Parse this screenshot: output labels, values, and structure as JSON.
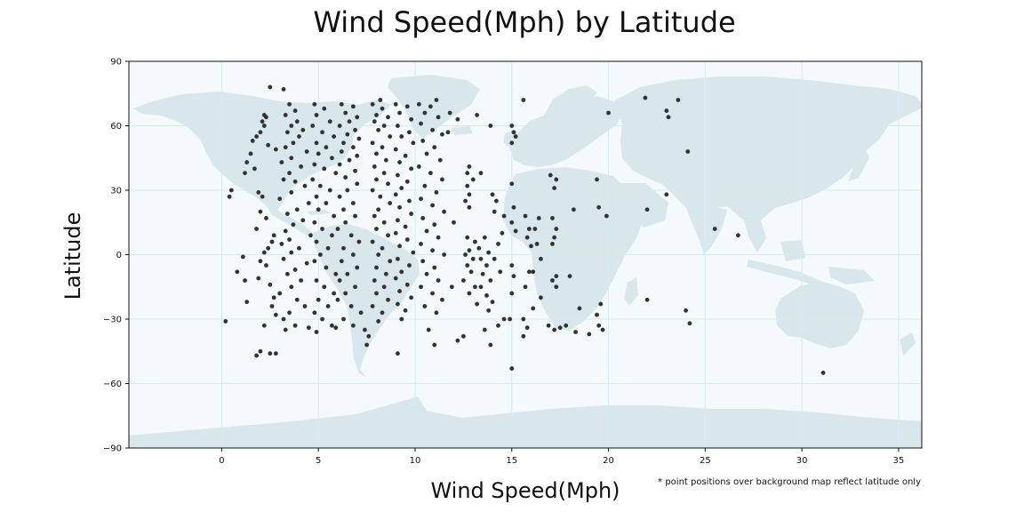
{
  "chart_data": {
    "type": "scatter",
    "title": "Wind Speed(Mph) by Latitude",
    "xlabel": "Wind Speed(Mph)",
    "ylabel": "Latitude",
    "xlim": [
      -4.8,
      36.2
    ],
    "ylim": [
      -90,
      90
    ],
    "x_ticks": [
      0,
      5,
      10,
      15,
      20,
      25,
      30,
      35
    ],
    "y_ticks": [
      90,
      60,
      30,
      0,
      -30,
      -60,
      -90
    ],
    "grid": true,
    "background": "world map",
    "footnote": "* point positions over background map reflect latitude only",
    "colors": {
      "points": "#333333",
      "land": "#d9e7ec",
      "ocean": "#f4f9fc",
      "grid": "#d6eaf5"
    },
    "points": [
      [
        2.5,
        78
      ],
      [
        3.2,
        77
      ],
      [
        2.2,
        65
      ],
      [
        2.3,
        64
      ],
      [
        2.1,
        62
      ],
      [
        2.2,
        60
      ],
      [
        2.0,
        57
      ],
      [
        1.8,
        55
      ],
      [
        1.6,
        53
      ],
      [
        2.4,
        51
      ],
      [
        2.8,
        49
      ],
      [
        1.5,
        47
      ],
      [
        1.3,
        43
      ],
      [
        1.7,
        40
      ],
      [
        1.2,
        38
      ],
      [
        0.5,
        30
      ],
      [
        0.4,
        27
      ],
      [
        1.9,
        29
      ],
      [
        2.1,
        27
      ],
      [
        2.0,
        20
      ],
      [
        2.3,
        17
      ],
      [
        1.8,
        12
      ],
      [
        2.7,
        9
      ],
      [
        2.6,
        6
      ],
      [
        2.4,
        3
      ],
      [
        2.2,
        1
      ],
      [
        1.1,
        -1
      ],
      [
        2.0,
        -3
      ],
      [
        2.3,
        -5
      ],
      [
        0.8,
        -8
      ],
      [
        1.2,
        -12
      ],
      [
        1.9,
        -11
      ],
      [
        2.5,
        -14
      ],
      [
        1.3,
        -22
      ],
      [
        2.7,
        -20
      ],
      [
        2.6,
        -24
      ],
      [
        2.8,
        -28
      ],
      [
        2.2,
        -33
      ],
      [
        0.2,
        -31
      ],
      [
        1.8,
        -47
      ],
      [
        2.0,
        -45
      ],
      [
        2.5,
        -46
      ],
      [
        2.8,
        -46
      ],
      [
        3.5,
        70
      ],
      [
        3.8,
        67
      ],
      [
        3.3,
        65
      ],
      [
        3.9,
        62
      ],
      [
        3.6,
        60
      ],
      [
        4.2,
        58
      ],
      [
        3.4,
        57
      ],
      [
        4.0,
        55
      ],
      [
        3.7,
        52
      ],
      [
        3.3,
        50
      ],
      [
        4.4,
        48
      ],
      [
        3.6,
        45
      ],
      [
        3.1,
        43
      ],
      [
        4.1,
        41
      ],
      [
        3.5,
        38
      ],
      [
        3.2,
        35
      ],
      [
        3.8,
        34
      ],
      [
        4.3,
        32
      ],
      [
        3.6,
        29
      ],
      [
        3.0,
        26
      ],
      [
        4.5,
        24
      ],
      [
        3.9,
        21
      ],
      [
        3.4,
        19
      ],
      [
        4.2,
        16
      ],
      [
        3.7,
        14
      ],
      [
        3.3,
        11
      ],
      [
        4.6,
        9
      ],
      [
        3.5,
        7
      ],
      [
        3.1,
        5
      ],
      [
        4.0,
        3
      ],
      [
        3.6,
        1
      ],
      [
        3.2,
        -2
      ],
      [
        4.4,
        -4
      ],
      [
        3.8,
        -7
      ],
      [
        3.4,
        -9
      ],
      [
        4.1,
        -12
      ],
      [
        3.6,
        -15
      ],
      [
        3.0,
        -18
      ],
      [
        3.9,
        -21
      ],
      [
        4.3,
        -24
      ],
      [
        3.5,
        -27
      ],
      [
        3.2,
        -30
      ],
      [
        3.8,
        -33
      ],
      [
        4.5,
        -34
      ],
      [
        3.3,
        -35
      ],
      [
        4.8,
        70
      ],
      [
        5.3,
        68
      ],
      [
        4.9,
        65
      ],
      [
        5.6,
        62
      ],
      [
        4.7,
        60
      ],
      [
        5.2,
        57
      ],
      [
        5.8,
        55
      ],
      [
        4.9,
        52
      ],
      [
        5.4,
        50
      ],
      [
        5.0,
        47
      ],
      [
        5.7,
        45
      ],
      [
        4.8,
        42
      ],
      [
        5.3,
        40
      ],
      [
        5.9,
        38
      ],
      [
        4.7,
        35
      ],
      [
        5.1,
        32
      ],
      [
        5.6,
        30
      ],
      [
        4.9,
        27
      ],
      [
        5.4,
        24
      ],
      [
        5.0,
        21
      ],
      [
        5.8,
        18
      ],
      [
        4.8,
        15
      ],
      [
        5.2,
        12
      ],
      [
        5.7,
        9
      ],
      [
        4.9,
        6
      ],
      [
        5.5,
        3
      ],
      [
        5.1,
        0
      ],
      [
        4.8,
        -3
      ],
      [
        5.4,
        -6
      ],
      [
        5.9,
        -9
      ],
      [
        4.9,
        -12
      ],
      [
        5.3,
        -15
      ],
      [
        5.8,
        -18
      ],
      [
        5.0,
        -21
      ],
      [
        5.5,
        -24
      ],
      [
        4.8,
        -27
      ],
      [
        5.2,
        -30
      ],
      [
        5.7,
        -33
      ],
      [
        5.9,
        -34
      ],
      [
        4.9,
        -36
      ],
      [
        6.2,
        70
      ],
      [
        6.8,
        69
      ],
      [
        6.4,
        66
      ],
      [
        7.0,
        64
      ],
      [
        6.6,
        62
      ],
      [
        6.1,
        60
      ],
      [
        6.9,
        58
      ],
      [
        6.5,
        56
      ],
      [
        7.1,
        54
      ],
      [
        6.3,
        52
      ],
      [
        6.8,
        50
      ],
      [
        6.2,
        48
      ],
      [
        7.0,
        46
      ],
      [
        6.6,
        44
      ],
      [
        6.1,
        42
      ],
      [
        6.9,
        39
      ],
      [
        6.4,
        36
      ],
      [
        7.0,
        33
      ],
      [
        6.5,
        30
      ],
      [
        6.1,
        27
      ],
      [
        6.8,
        24
      ],
      [
        6.3,
        21
      ],
      [
        6.9,
        18
      ],
      [
        6.4,
        15
      ],
      [
        6.0,
        12
      ],
      [
        6.7,
        9
      ],
      [
        7.1,
        6
      ],
      [
        6.3,
        3
      ],
      [
        6.8,
        0
      ],
      [
        6.2,
        -3
      ],
      [
        7.0,
        -6
      ],
      [
        6.5,
        -9
      ],
      [
        6.1,
        -12
      ],
      [
        6.9,
        -15
      ],
      [
        6.4,
        -18
      ],
      [
        6.0,
        -21
      ],
      [
        6.7,
        -24
      ],
      [
        7.2,
        -27
      ],
      [
        6.3,
        -30
      ],
      [
        6.8,
        -33
      ],
      [
        7.4,
        -35
      ],
      [
        7.6,
        -38
      ],
      [
        7.5,
        -42
      ],
      [
        7.8,
        70
      ],
      [
        8.3,
        68
      ],
      [
        8.0,
        65
      ],
      [
        8.6,
        64
      ],
      [
        7.9,
        62
      ],
      [
        8.4,
        60
      ],
      [
        8.1,
        58
      ],
      [
        8.7,
        55
      ],
      [
        7.8,
        52
      ],
      [
        8.3,
        50
      ],
      [
        8.0,
        47
      ],
      [
        8.5,
        44
      ],
      [
        7.9,
        41
      ],
      [
        8.4,
        38
      ],
      [
        8.0,
        35
      ],
      [
        8.6,
        33
      ],
      [
        7.8,
        30
      ],
      [
        8.2,
        27
      ],
      [
        8.7,
        24
      ],
      [
        8.1,
        21
      ],
      [
        7.9,
        18
      ],
      [
        8.4,
        15
      ],
      [
        8.0,
        12
      ],
      [
        8.6,
        9
      ],
      [
        7.8,
        6
      ],
      [
        8.3,
        3
      ],
      [
        8.1,
        0
      ],
      [
        8.7,
        -3
      ],
      [
        8.0,
        -6
      ],
      [
        8.5,
        -9
      ],
      [
        7.9,
        -12
      ],
      [
        8.4,
        -15
      ],
      [
        8.0,
        -18
      ],
      [
        8.6,
        -21
      ],
      [
        7.8,
        -24
      ],
      [
        8.3,
        -27
      ],
      [
        8.1,
        -31
      ],
      [
        8.2,
        72
      ],
      [
        9.0,
        70
      ],
      [
        9.6,
        69
      ],
      [
        9.2,
        66
      ],
      [
        9.8,
        63
      ],
      [
        9.1,
        60
      ],
      [
        9.7,
        57
      ],
      [
        9.3,
        55
      ],
      [
        9.9,
        52
      ],
      [
        9.0,
        49
      ],
      [
        9.5,
        46
      ],
      [
        9.2,
        43
      ],
      [
        9.8,
        40
      ],
      [
        9.1,
        37
      ],
      [
        9.6,
        34
      ],
      [
        9.3,
        31
      ],
      [
        9.0,
        28
      ],
      [
        9.7,
        25
      ],
      [
        9.2,
        22
      ],
      [
        9.8,
        19
      ],
      [
        9.1,
        16
      ],
      [
        9.5,
        13
      ],
      [
        9.0,
        10
      ],
      [
        9.6,
        7
      ],
      [
        9.2,
        4
      ],
      [
        9.9,
        1
      ],
      [
        9.1,
        -2
      ],
      [
        9.7,
        -5
      ],
      [
        9.3,
        -8
      ],
      [
        9.0,
        -11
      ],
      [
        9.6,
        -14
      ],
      [
        9.2,
        -17
      ],
      [
        9.8,
        -20
      ],
      [
        9.1,
        -23
      ],
      [
        9.5,
        -26
      ],
      [
        9.3,
        -30
      ],
      [
        9.1,
        -46
      ],
      [
        10.2,
        70
      ],
      [
        10.8,
        69
      ],
      [
        11.1,
        72
      ],
      [
        10.5,
        66
      ],
      [
        11.2,
        64
      ],
      [
        10.3,
        61
      ],
      [
        10.9,
        58
      ],
      [
        11.4,
        56
      ],
      [
        10.4,
        53
      ],
      [
        11.0,
        50
      ],
      [
        10.6,
        47
      ],
      [
        11.3,
        44
      ],
      [
        10.2,
        41
      ],
      [
        10.8,
        38
      ],
      [
        11.4,
        35
      ],
      [
        10.5,
        32
      ],
      [
        11.1,
        29
      ],
      [
        10.3,
        26
      ],
      [
        10.9,
        23
      ],
      [
        11.5,
        20
      ],
      [
        10.4,
        17
      ],
      [
        11.0,
        14
      ],
      [
        10.6,
        11
      ],
      [
        11.2,
        8
      ],
      [
        10.3,
        5
      ],
      [
        10.9,
        2
      ],
      [
        11.5,
        0
      ],
      [
        10.4,
        -3
      ],
      [
        11.0,
        -6
      ],
      [
        10.6,
        -9
      ],
      [
        11.2,
        -12
      ],
      [
        10.3,
        -15
      ],
      [
        10.9,
        -18
      ],
      [
        11.4,
        -21
      ],
      [
        10.5,
        -24
      ],
      [
        11.1,
        -27
      ],
      [
        10.7,
        -35
      ],
      [
        11.0,
        -42
      ],
      [
        11.8,
        66
      ],
      [
        12.2,
        63
      ],
      [
        11.7,
        57
      ],
      [
        12.0,
        15
      ],
      [
        11.9,
        -15
      ],
      [
        12.2,
        -40
      ],
      [
        12.8,
        41
      ],
      [
        12.7,
        38
      ],
      [
        13.0,
        35
      ],
      [
        12.7,
        32
      ],
      [
        12.8,
        28
      ],
      [
        12.6,
        25
      ],
      [
        12.8,
        22
      ],
      [
        12.7,
        8
      ],
      [
        13.1,
        6
      ],
      [
        12.8,
        2
      ],
      [
        12.6,
        0
      ],
      [
        13.0,
        -2
      ],
      [
        12.7,
        -5
      ],
      [
        12.9,
        -8
      ],
      [
        12.5,
        -12
      ],
      [
        13.1,
        -15
      ],
      [
        12.8,
        -18
      ],
      [
        12.5,
        -38
      ],
      [
        13.2,
        65
      ],
      [
        13.4,
        38
      ],
      [
        13.6,
        8
      ],
      [
        13.3,
        3
      ],
      [
        13.8,
        1
      ],
      [
        13.4,
        -2
      ],
      [
        13.7,
        -5
      ],
      [
        13.5,
        -9
      ],
      [
        13.9,
        -12
      ],
      [
        13.4,
        -15
      ],
      [
        13.7,
        -19
      ],
      [
        13.2,
        -23
      ],
      [
        13.8,
        -26
      ],
      [
        13.6,
        -35
      ],
      [
        13.9,
        -42
      ],
      [
        13.9,
        60
      ],
      [
        14.0,
        28
      ],
      [
        14.1,
        20
      ],
      [
        14.2,
        25
      ],
      [
        14.6,
        18
      ],
      [
        14.5,
        10
      ],
      [
        14.3,
        5
      ],
      [
        14.1,
        -2
      ],
      [
        14.4,
        -8
      ],
      [
        14.0,
        -22
      ],
      [
        14.6,
        -30
      ],
      [
        14.3,
        -33
      ],
      [
        15.0,
        60
      ],
      [
        15.1,
        57
      ],
      [
        15.2,
        55
      ],
      [
        15.0,
        52
      ],
      [
        15.0,
        33
      ],
      [
        15.1,
        22
      ],
      [
        15.0,
        15
      ],
      [
        15.2,
        11
      ],
      [
        15.0,
        -5
      ],
      [
        15.1,
        -10
      ],
      [
        15.0,
        -18
      ],
      [
        14.9,
        -30
      ],
      [
        15.0,
        -53
      ],
      [
        15.6,
        72
      ],
      [
        15.7,
        18
      ],
      [
        15.9,
        12
      ],
      [
        15.8,
        8
      ],
      [
        16.0,
        4
      ],
      [
        15.9,
        -8
      ],
      [
        15.7,
        -15
      ],
      [
        15.6,
        -30
      ],
      [
        15.8,
        -34
      ],
      [
        15.6,
        -38
      ],
      [
        16.1,
        -8
      ],
      [
        16.1,
        -25
      ],
      [
        16.2,
        12
      ],
      [
        16.4,
        17
      ],
      [
        16.3,
        5
      ],
      [
        16.5,
        -2
      ],
      [
        16.5,
        -20
      ],
      [
        16.9,
        -33
      ],
      [
        17.0,
        37
      ],
      [
        17.3,
        35
      ],
      [
        17.2,
        31
      ],
      [
        17.1,
        17
      ],
      [
        17.3,
        12
      ],
      [
        17.2,
        8
      ],
      [
        17.1,
        5
      ],
      [
        17.3,
        -10
      ],
      [
        17.1,
        -12
      ],
      [
        17.3,
        -15
      ],
      [
        17.2,
        -35
      ],
      [
        17.5,
        -34
      ],
      [
        17.8,
        -33
      ],
      [
        18.2,
        21
      ],
      [
        18.0,
        -10
      ],
      [
        18.5,
        -25
      ],
      [
        18.3,
        -36
      ],
      [
        19.0,
        -37
      ],
      [
        19.4,
        35
      ],
      [
        19.5,
        22
      ],
      [
        19.6,
        -23
      ],
      [
        19.4,
        -28
      ],
      [
        19.5,
        -33
      ],
      [
        19.7,
        -35
      ],
      [
        19.9,
        18
      ],
      [
        20.0,
        66
      ],
      [
        21.9,
        73
      ],
      [
        22.0,
        21
      ],
      [
        22.0,
        -21
      ],
      [
        23.0,
        67
      ],
      [
        23.1,
        64
      ],
      [
        23.0,
        28
      ],
      [
        23.6,
        72
      ],
      [
        24.1,
        48
      ],
      [
        24.0,
        -26
      ],
      [
        24.2,
        -32
      ],
      [
        25.5,
        12
      ],
      [
        26.7,
        9
      ],
      [
        31.1,
        -55
      ]
    ]
  }
}
